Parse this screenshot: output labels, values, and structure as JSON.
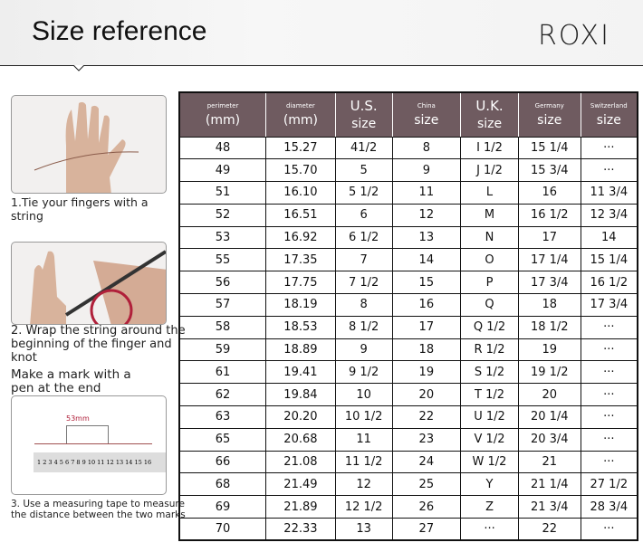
{
  "header": {
    "title": "Size reference",
    "logo": "ROXI"
  },
  "steps": [
    {
      "text": "1.Tie your fingers with a string"
    },
    {
      "text": "2. Wrap the string around the beginning of the finger and knot"
    },
    {
      "text": "Make a mark with a pen at the end"
    },
    {
      "text": "3. Use a measuring tape to measure the distance between the two marks",
      "measure_label": "53mm",
      "ruler": "1 2 3 4 5 6 7 8 9 10 11 12 13 14 15 16"
    }
  ],
  "table": {
    "header_color": "#6f5b60",
    "columns": [
      {
        "top": "perimeter",
        "bottom": "(mm)",
        "top_small": true
      },
      {
        "top": "diameter",
        "bottom": "(mm)",
        "top_small": true
      },
      {
        "top": "U.S.",
        "bottom": "size",
        "top_small": false
      },
      {
        "top": "China",
        "bottom": "size",
        "top_small": true
      },
      {
        "top": "U.K.",
        "bottom": "size",
        "top_small": false
      },
      {
        "top": "Germany",
        "bottom": "size",
        "top_small": true
      },
      {
        "top": "Switzerland",
        "bottom": "size",
        "top_small": true
      }
    ],
    "rows": [
      [
        "48",
        "15.27",
        "41/2",
        "8",
        "I 1/2",
        "15 1/4",
        "···"
      ],
      [
        "49",
        "15.70",
        "5",
        "9",
        "J 1/2",
        "15 3/4",
        "···"
      ],
      [
        "51",
        "16.10",
        "5 1/2",
        "11",
        "L",
        "16",
        "11 3/4"
      ],
      [
        "52",
        "16.51",
        "6",
        "12",
        "M",
        "16 1/2",
        "12 3/4"
      ],
      [
        "53",
        "16.92",
        "6 1/2",
        "13",
        "N",
        "17",
        "14"
      ],
      [
        "55",
        "17.35",
        "7",
        "14",
        "O",
        "17 1/4",
        "15 1/4"
      ],
      [
        "56",
        "17.75",
        "7 1/2",
        "15",
        "P",
        "17 3/4",
        "16 1/2"
      ],
      [
        "57",
        "18.19",
        "8",
        "16",
        "Q",
        "18",
        "17 3/4"
      ],
      [
        "58",
        "18.53",
        "8 1/2",
        "17",
        "Q  1/2",
        "18 1/2",
        "···"
      ],
      [
        "59",
        "18.89",
        "9",
        "18",
        "R 1/2",
        "19",
        "···"
      ],
      [
        "61",
        "19.41",
        "9 1/2",
        "19",
        "S 1/2",
        "19 1/2",
        "···"
      ],
      [
        "62",
        "19.84",
        "10",
        "20",
        "T 1/2",
        "20",
        "···"
      ],
      [
        "63",
        "20.20",
        "10 1/2",
        "22",
        "U 1/2",
        "20 1/4",
        "···"
      ],
      [
        "65",
        "20.68",
        "11",
        "23",
        "V 1/2",
        "20 3/4",
        "···"
      ],
      [
        "66",
        "21.08",
        "11 1/2",
        "24",
        "W 1/2",
        "21",
        "···"
      ],
      [
        "68",
        "21.49",
        "12",
        "25",
        "Y",
        "21 1/4",
        "27 1/2"
      ],
      [
        "69",
        "21.89",
        "12 1/2",
        "26",
        "Z",
        "21 3/4",
        "28 3/4"
      ],
      [
        "70",
        "22.33",
        "13",
        "27",
        "···",
        "22",
        "···"
      ]
    ]
  }
}
